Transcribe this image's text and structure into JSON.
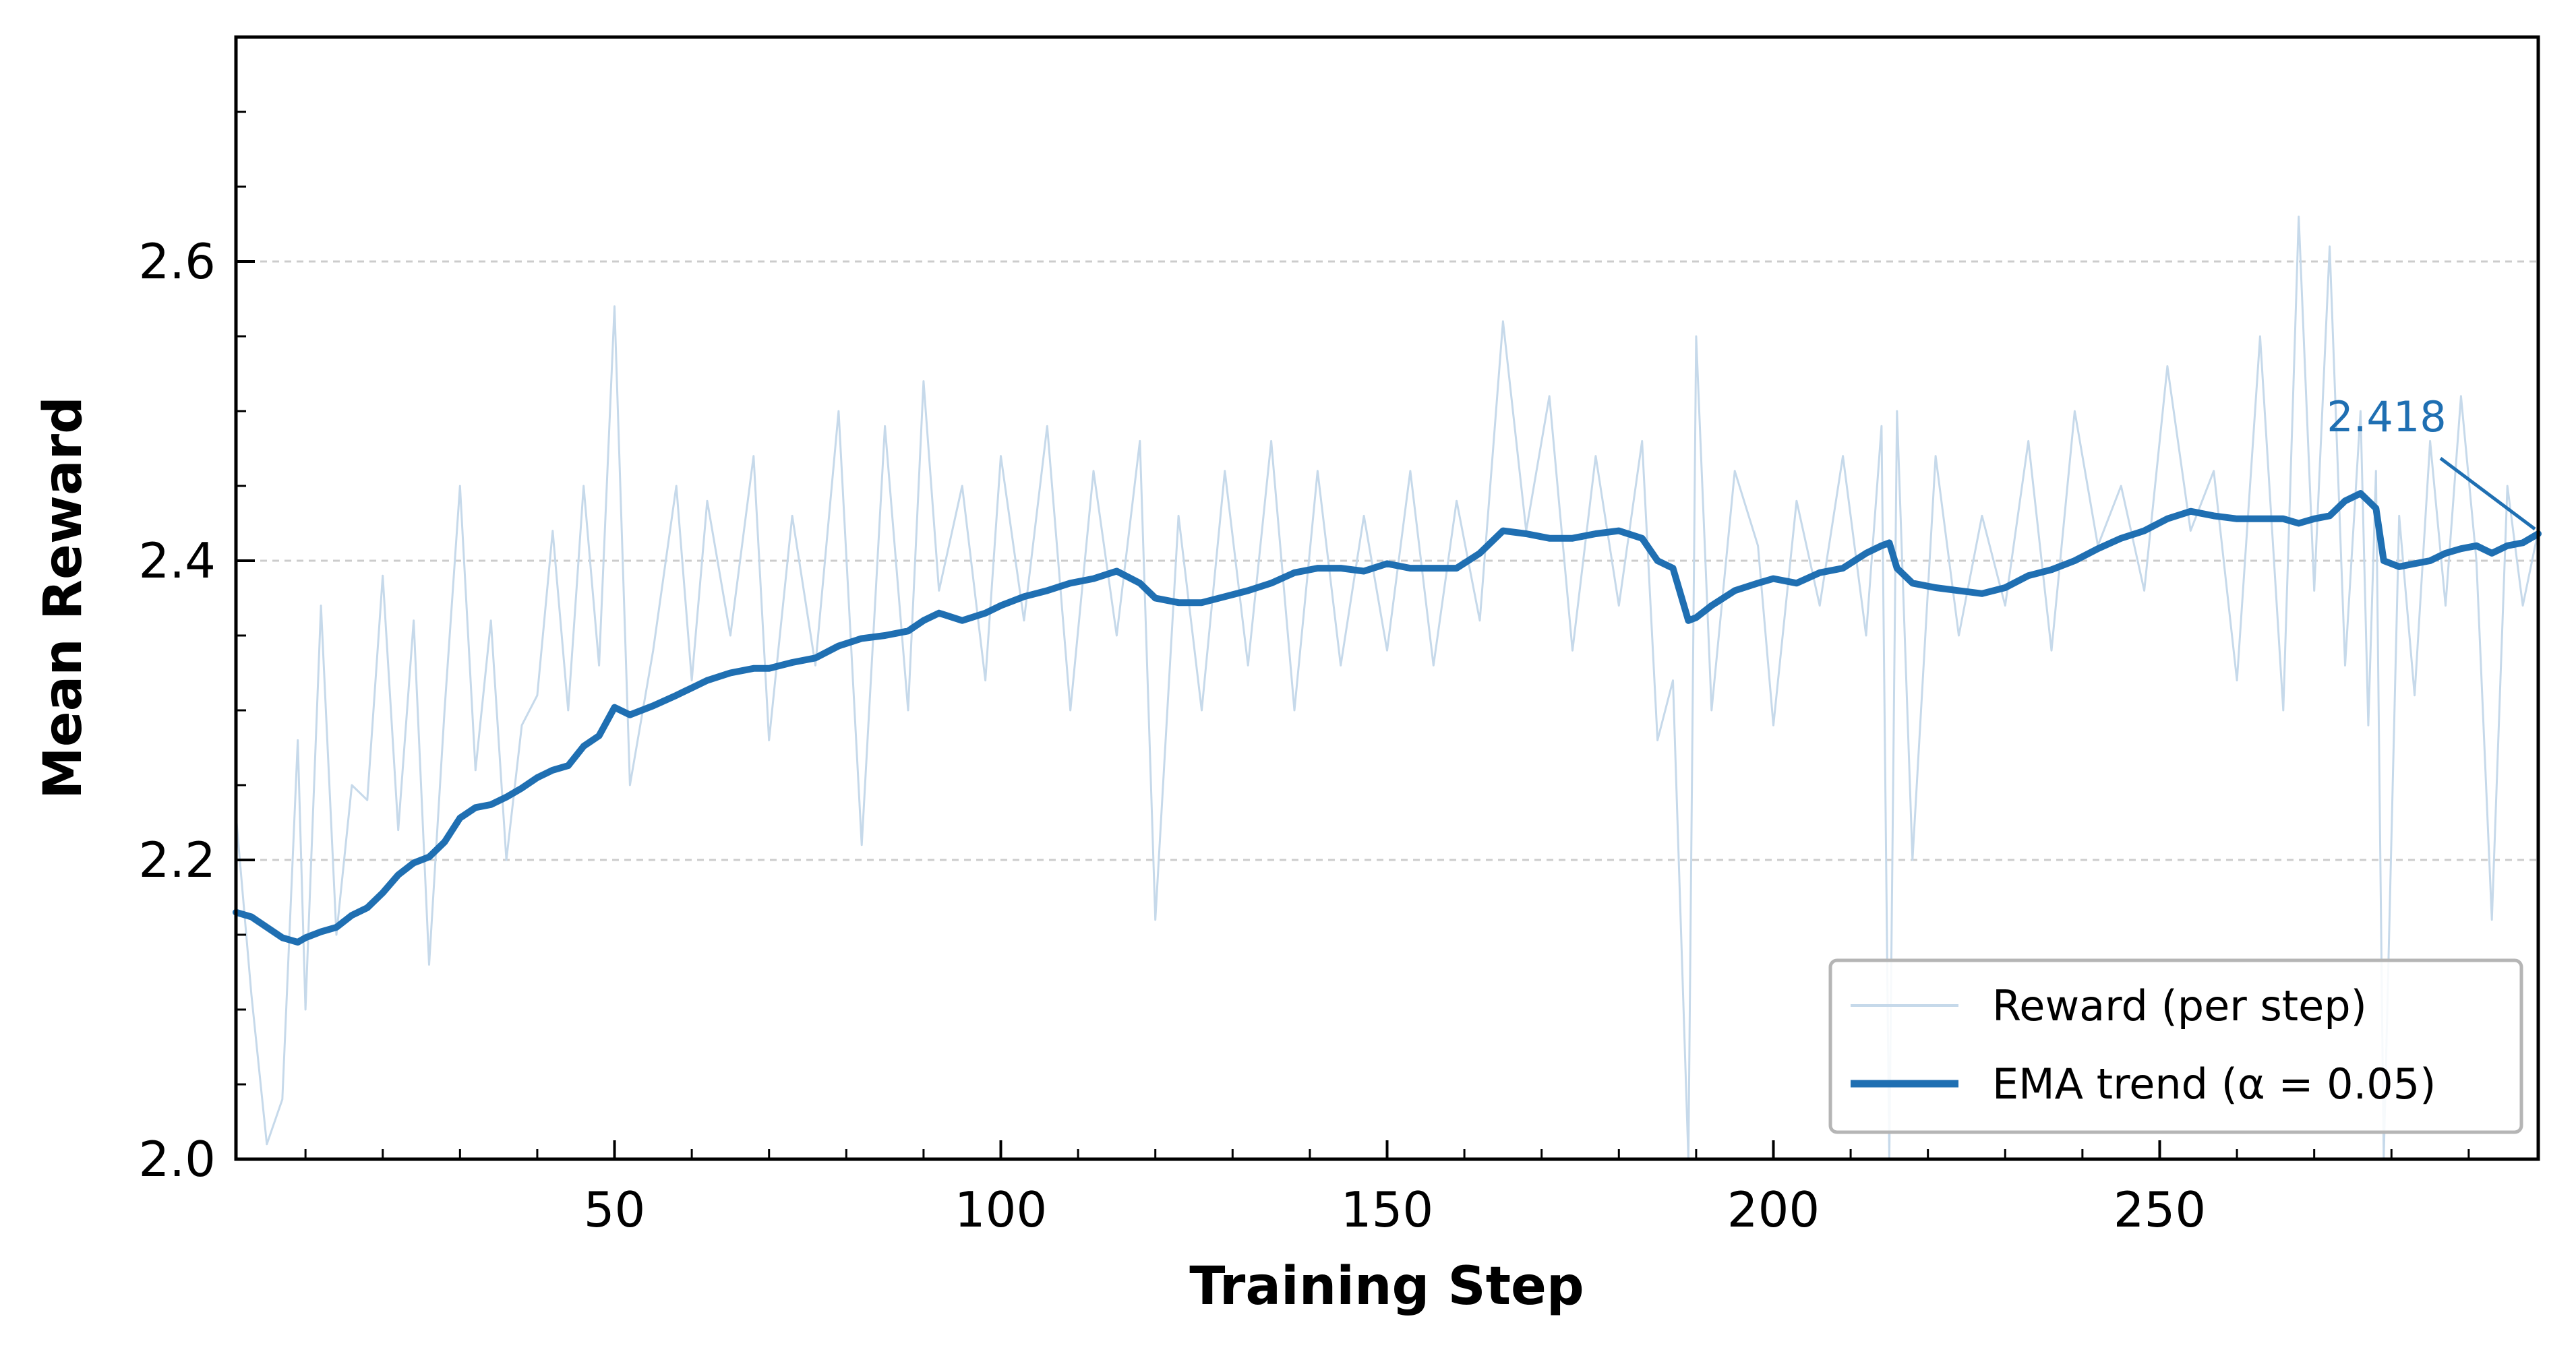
{
  "chart_data": {
    "type": "line",
    "xlabel": "Training Step",
    "ylabel": "Mean Reward",
    "xlim": [
      1,
      299
    ],
    "ylim": [
      2.0,
      2.75
    ],
    "xticks": [
      50,
      100,
      150,
      200,
      250
    ],
    "xtick_labels": [
      "50",
      "100",
      "150",
      "200",
      "250"
    ],
    "yticks": [
      2.0,
      2.2,
      2.4,
      2.6
    ],
    "ytick_labels": [
      "2.0",
      "2.2",
      "2.4",
      "2.6"
    ],
    "grid": "horizontal dashed",
    "legend_position": "lower-right",
    "colors": {
      "raw": "#c6d9ea",
      "ema": "#1f6fb2",
      "grid": "#cccccc"
    },
    "annotation": {
      "text": "2.418",
      "x": 299,
      "y": 2.418
    },
    "series": [
      {
        "name": "Reward (per step)",
        "style": "thin-light",
        "x": [
          1,
          3,
          5,
          7,
          9,
          10,
          12,
          14,
          16,
          18,
          20,
          22,
          24,
          26,
          28,
          30,
          32,
          34,
          36,
          38,
          40,
          42,
          44,
          46,
          48,
          50,
          52,
          55,
          58,
          60,
          62,
          65,
          68,
          70,
          73,
          76,
          79,
          82,
          85,
          88,
          90,
          92,
          95,
          98,
          100,
          103,
          106,
          109,
          112,
          115,
          118,
          120,
          123,
          126,
          129,
          132,
          135,
          138,
          141,
          144,
          147,
          150,
          153,
          156,
          159,
          162,
          165,
          168,
          171,
          174,
          177,
          180,
          183,
          185,
          187,
          189,
          190,
          192,
          195,
          198,
          200,
          203,
          206,
          209,
          212,
          214,
          215,
          216,
          218,
          221,
          224,
          227,
          230,
          233,
          236,
          239,
          242,
          245,
          248,
          251,
          254,
          257,
          260,
          263,
          266,
          268,
          270,
          272,
          274,
          276,
          277,
          278,
          279,
          281,
          283,
          285,
          287,
          289,
          291,
          293,
          295,
          297,
          299
        ],
        "values": [
          2.23,
          2.11,
          2.01,
          2.04,
          2.28,
          2.1,
          2.37,
          2.15,
          2.25,
          2.24,
          2.39,
          2.22,
          2.36,
          2.13,
          2.3,
          2.45,
          2.26,
          2.36,
          2.2,
          2.29,
          2.31,
          2.42,
          2.3,
          2.45,
          2.33,
          2.57,
          2.25,
          2.34,
          2.45,
          2.32,
          2.44,
          2.35,
          2.47,
          2.28,
          2.43,
          2.33,
          2.5,
          2.21,
          2.49,
          2.3,
          2.52,
          2.38,
          2.45,
          2.32,
          2.47,
          2.36,
          2.49,
          2.3,
          2.46,
          2.35,
          2.48,
          2.16,
          2.43,
          2.3,
          2.46,
          2.33,
          2.48,
          2.3,
          2.46,
          2.33,
          2.43,
          2.34,
          2.46,
          2.33,
          2.44,
          2.36,
          2.56,
          2.42,
          2.51,
          2.34,
          2.47,
          2.37,
          2.48,
          2.28,
          2.32,
          2.0,
          2.55,
          2.3,
          2.46,
          2.41,
          2.29,
          2.44,
          2.37,
          2.47,
          2.35,
          2.49,
          2.0,
          2.5,
          2.2,
          2.47,
          2.35,
          2.43,
          2.37,
          2.48,
          2.34,
          2.5,
          2.41,
          2.45,
          2.38,
          2.53,
          2.42,
          2.46,
          2.32,
          2.55,
          2.3,
          2.63,
          2.38,
          2.61,
          2.33,
          2.5,
          2.29,
          2.46,
          2.0,
          2.43,
          2.31,
          2.48,
          2.37,
          2.51,
          2.4,
          2.16,
          2.45,
          2.37,
          2.42
        ]
      },
      {
        "name": "EMA trend (α = 0.05)",
        "style": "thick-dark",
        "x": [
          1,
          3,
          5,
          7,
          9,
          10,
          12,
          14,
          16,
          18,
          20,
          22,
          24,
          26,
          28,
          30,
          32,
          34,
          36,
          38,
          40,
          42,
          44,
          46,
          48,
          50,
          52,
          55,
          58,
          60,
          62,
          65,
          68,
          70,
          73,
          76,
          79,
          82,
          85,
          88,
          90,
          92,
          95,
          98,
          100,
          103,
          106,
          109,
          112,
          115,
          118,
          120,
          123,
          126,
          129,
          132,
          135,
          138,
          141,
          144,
          147,
          150,
          153,
          156,
          159,
          162,
          165,
          168,
          171,
          174,
          177,
          180,
          183,
          185,
          187,
          189,
          190,
          192,
          195,
          198,
          200,
          203,
          206,
          209,
          212,
          214,
          215,
          216,
          218,
          221,
          224,
          227,
          230,
          233,
          236,
          239,
          242,
          245,
          248,
          251,
          254,
          257,
          260,
          263,
          266,
          268,
          270,
          272,
          274,
          276,
          277,
          278,
          279,
          281,
          283,
          285,
          287,
          289,
          291,
          293,
          295,
          297,
          299
        ],
        "values": [
          2.165,
          2.162,
          2.155,
          2.148,
          2.145,
          2.148,
          2.152,
          2.155,
          2.163,
          2.168,
          2.178,
          2.19,
          2.198,
          2.202,
          2.212,
          2.228,
          2.235,
          2.237,
          2.242,
          2.248,
          2.255,
          2.26,
          2.263,
          2.276,
          2.283,
          2.302,
          2.297,
          2.303,
          2.31,
          2.315,
          2.32,
          2.325,
          2.328,
          2.328,
          2.332,
          2.335,
          2.343,
          2.348,
          2.35,
          2.353,
          2.36,
          2.365,
          2.36,
          2.365,
          2.37,
          2.376,
          2.38,
          2.385,
          2.388,
          2.393,
          2.385,
          2.375,
          2.372,
          2.372,
          2.376,
          2.38,
          2.385,
          2.392,
          2.395,
          2.395,
          2.393,
          2.398,
          2.395,
          2.395,
          2.395,
          2.405,
          2.42,
          2.418,
          2.415,
          2.415,
          2.418,
          2.42,
          2.415,
          2.4,
          2.395,
          2.36,
          2.362,
          2.37,
          2.38,
          2.385,
          2.388,
          2.385,
          2.392,
          2.395,
          2.405,
          2.41,
          2.412,
          2.395,
          2.385,
          2.382,
          2.38,
          2.378,
          2.382,
          2.39,
          2.394,
          2.4,
          2.408,
          2.415,
          2.42,
          2.428,
          2.433,
          2.43,
          2.428,
          2.428,
          2.428,
          2.425,
          2.428,
          2.43,
          2.44,
          2.445,
          2.44,
          2.435,
          2.4,
          2.396,
          2.398,
          2.4,
          2.405,
          2.408,
          2.41,
          2.405,
          2.41,
          2.412,
          2.418
        ]
      }
    ]
  }
}
